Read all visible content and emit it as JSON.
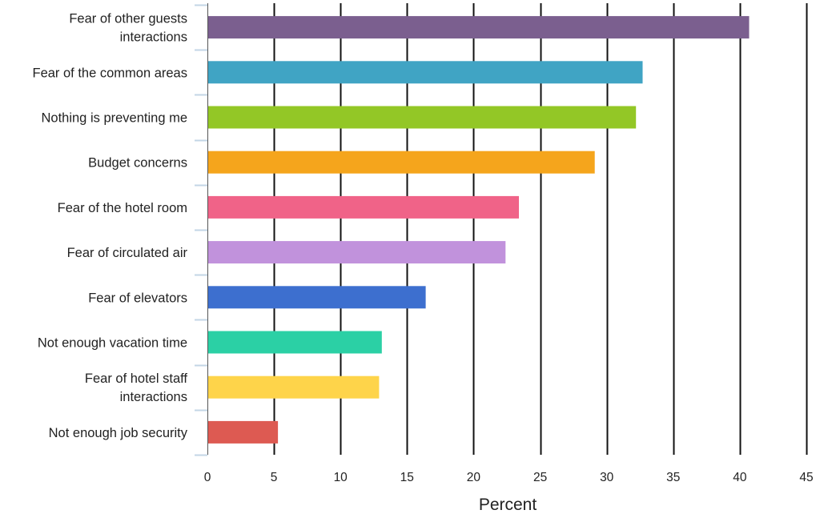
{
  "chart_data": {
    "type": "bar",
    "orientation": "horizontal",
    "title": "",
    "xlabel": "Percent",
    "ylabel": "",
    "xlim": [
      0,
      45
    ],
    "xticks": [
      0,
      5,
      10,
      15,
      20,
      25,
      30,
      35,
      40,
      45
    ],
    "grid": true,
    "legend": "none",
    "categories": [
      "Fear of other guests interactions",
      "Fear of the common areas",
      "Nothing is preventing me",
      "Budget concerns",
      "Fear of the hotel room",
      "Fear of circulated air",
      "Fear of elevators",
      "Not enough vacation time",
      "Fear of hotel staff interactions",
      "Not enough job security"
    ],
    "values": [
      40.7,
      32.7,
      32.2,
      29.1,
      23.4,
      22.4,
      16.4,
      13.1,
      12.9,
      5.3
    ],
    "colors": [
      "#7b5f8f",
      "#40a4c4",
      "#93c726",
      "#f5a51c",
      "#f06388",
      "#c192dc",
      "#3d6fcf",
      "#2bd0a5",
      "#fed44a",
      "#dd5a52"
    ]
  }
}
